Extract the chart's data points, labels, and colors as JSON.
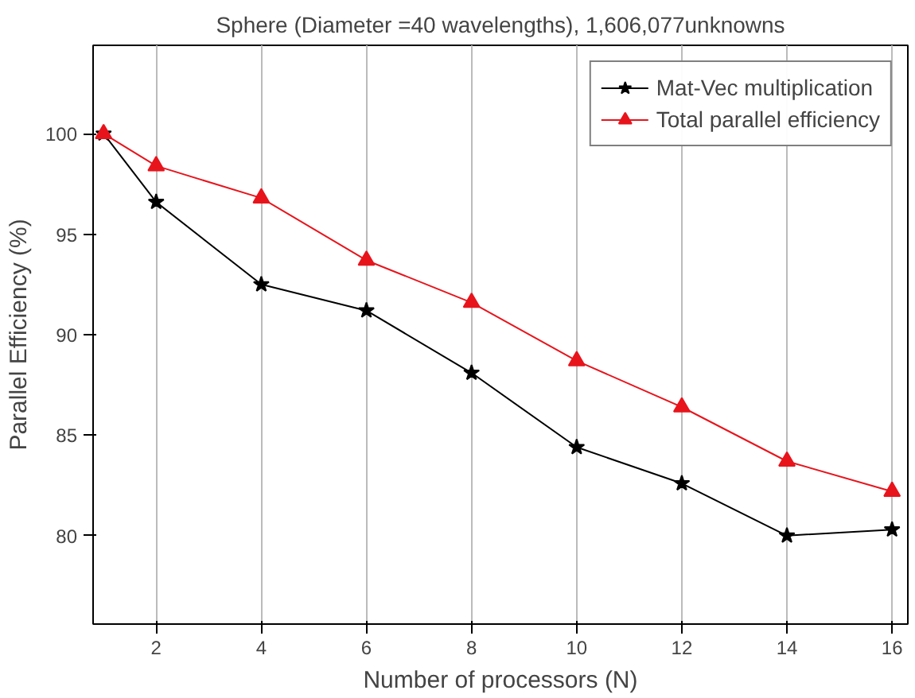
{
  "chart_data": {
    "type": "line",
    "title": "Sphere (Diameter =40 wavelengths), 1,606,077unknowns",
    "xlabel": "Number of processors (N)",
    "ylabel": "Parallel Efficiency (%)",
    "x": [
      1,
      2,
      4,
      6,
      8,
      10,
      12,
      14,
      16
    ],
    "series": [
      {
        "name": "Mat-Vec multiplication",
        "color": "#000000",
        "marker": "star",
        "values": [
          100,
          96.6,
          92.5,
          91.2,
          88.1,
          84.4,
          82.6,
          80.0,
          80.3
        ]
      },
      {
        "name": "Total parallel efficiency",
        "color": "#e8141c",
        "marker": "triangle",
        "values": [
          100,
          98.4,
          96.8,
          93.7,
          91.6,
          88.7,
          86.4,
          83.7,
          82.2
        ]
      }
    ],
    "xlim": [
      0.8,
      16.3
    ],
    "ylim": [
      75.6,
      104.4
    ],
    "xticks": [
      2,
      4,
      6,
      8,
      10,
      12,
      14,
      16
    ],
    "yticks": [
      80,
      85,
      90,
      95,
      100
    ],
    "grid": "x",
    "legend": "top right",
    "line_style": "solid"
  }
}
